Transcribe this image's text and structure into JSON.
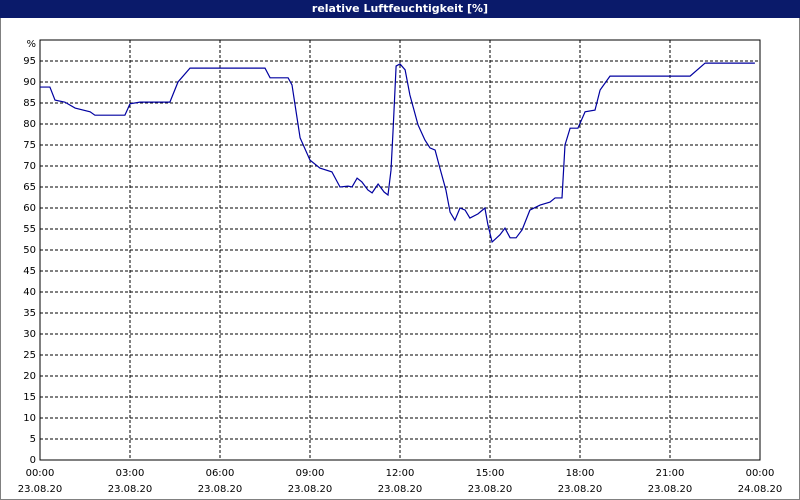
{
  "chart_data": {
    "type": "line",
    "title": "relative Luftfeuchtigkeit [%]",
    "y_unit": "%",
    "xlim": [
      0,
      24
    ],
    "xticks": [
      {
        "value": 0,
        "label": "00:00",
        "date": "23.08.20"
      },
      {
        "value": 3,
        "label": "03:00",
        "date": "23.08.20"
      },
      {
        "value": 6,
        "label": "06:00",
        "date": "23.08.20"
      },
      {
        "value": 9,
        "label": "09:00",
        "date": "23.08.20"
      },
      {
        "value": 12,
        "label": "12:00",
        "date": "23.08.20"
      },
      {
        "value": 15,
        "label": "15:00",
        "date": "23.08.20"
      },
      {
        "value": 18,
        "label": "18:00",
        "date": "23.08.20"
      },
      {
        "value": 21,
        "label": "21:00",
        "date": "23.08.20"
      },
      {
        "value": 24,
        "label": "00:00",
        "date": "24.08.20"
      }
    ],
    "ylim": [
      0,
      100
    ],
    "yticks": [
      0,
      5,
      10,
      15,
      20,
      25,
      30,
      35,
      40,
      45,
      50,
      55,
      60,
      65,
      70,
      75,
      80,
      85,
      90,
      95
    ],
    "grid": true,
    "series": [
      {
        "color": "#0000a0",
        "x": [
          0,
          0.33,
          0.5,
          0.83,
          1.17,
          1.67,
          1.83,
          2.83,
          3,
          3.33,
          4.33,
          4.6,
          5,
          7.5,
          7.67,
          8.27,
          8.4,
          8.67,
          9,
          9.33,
          9.73,
          10,
          10.27,
          10.4,
          10.57,
          10.73,
          10.93,
          11.07,
          11.27,
          11.47,
          11.6,
          11.7,
          11.77,
          11.87,
          12,
          12.17,
          12.33,
          12.6,
          12.83,
          13,
          13.17,
          13.33,
          13.53,
          13.67,
          13.83,
          14,
          14.17,
          14.33,
          14.6,
          14.83,
          14.93,
          15.07,
          15.33,
          15.5,
          15.67,
          15.87,
          16.07,
          16.33,
          16.67,
          17,
          17.17,
          17.4,
          17.5,
          17.67,
          17.93,
          18.17,
          18.5,
          18.67,
          19,
          21.67,
          22.17,
          23.83
        ],
        "values": [
          88.8,
          88.8,
          85.7,
          85.2,
          83.8,
          82.9,
          82.1,
          82.1,
          84.8,
          85.2,
          85.2,
          90,
          93.3,
          93.3,
          91,
          91,
          89.3,
          76.7,
          71.4,
          69.5,
          68.6,
          65,
          65.2,
          65,
          67.1,
          66.2,
          64.3,
          63.6,
          65.7,
          63.8,
          63.1,
          69,
          78.6,
          93.8,
          94.3,
          92.9,
          86.9,
          79.8,
          76.2,
          74.3,
          73.8,
          69.5,
          64.3,
          59,
          57.1,
          60,
          59.5,
          57.6,
          58.6,
          60,
          56,
          51.9,
          53.6,
          55.2,
          52.9,
          52.9,
          54.8,
          59.5,
          60.7,
          61.4,
          62.4,
          62.4,
          75,
          79,
          79,
          82.9,
          83.3,
          88.1,
          91.4,
          91.4,
          94.5,
          94.5
        ]
      }
    ]
  }
}
